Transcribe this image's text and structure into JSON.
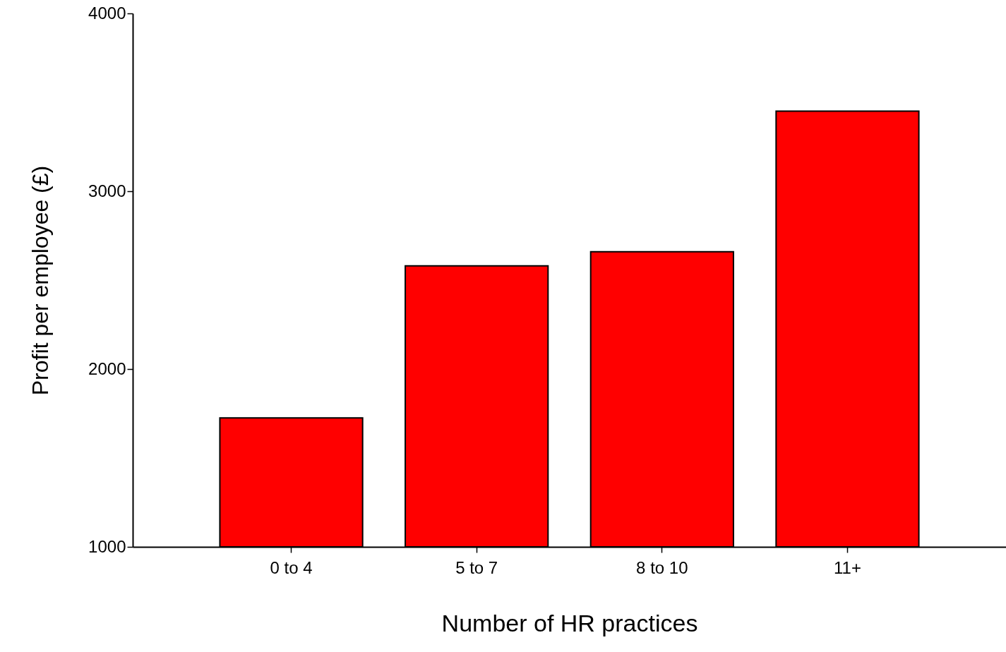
{
  "chart_data": {
    "type": "bar",
    "xlabel": "Number of HR practices",
    "ylabel": "Profit per employee (£)",
    "categories": [
      "0 to 4",
      "5 to 7",
      "8 to 10",
      "11+"
    ],
    "values": [
      1725,
      2580,
      2660,
      3450
    ],
    "color": "#ff0000",
    "ylim": [
      1000,
      4000
    ],
    "yticks": [
      1000,
      2000,
      3000,
      4000
    ],
    "grid": false
  }
}
